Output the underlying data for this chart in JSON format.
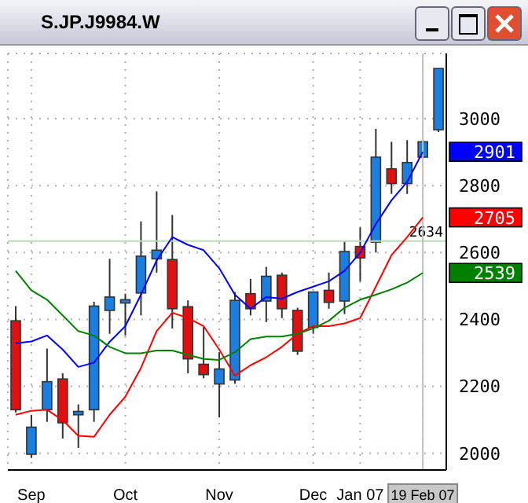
{
  "chart_data": {
    "type": "candlestick",
    "title": "S.JP.J9984.W",
    "categories": [
      null,
      "Sep",
      null,
      null,
      null,
      null,
      null,
      "Oct",
      null,
      null,
      null,
      null,
      null,
      "Nov",
      null,
      null,
      null,
      null,
      null,
      "Dec",
      null,
      null,
      "Jan 07",
      null,
      null,
      null,
      "19 Feb 07",
      null
    ],
    "ohlc": [
      [
        2396,
        2440,
        2122,
        2130
      ],
      [
        1997,
        2115,
        1986,
        2078
      ],
      [
        2130,
        2313,
        2094,
        2214
      ],
      [
        2222,
        2239,
        2044,
        2091
      ],
      [
        2115,
        2146,
        2016,
        2125
      ],
      [
        2130,
        2453,
        2094,
        2440
      ],
      [
        2427,
        2581,
        2357,
        2467
      ],
      [
        2449,
        2477,
        2352,
        2459
      ],
      [
        2479,
        2693,
        2412,
        2589
      ],
      [
        2581,
        2783,
        2540,
        2607
      ],
      [
        2579,
        2712,
        2373,
        2432
      ],
      [
        2438,
        2457,
        2239,
        2282
      ],
      [
        2266,
        2377,
        2224,
        2235
      ],
      [
        2207,
        2302,
        2107,
        2252
      ],
      [
        2219,
        2482,
        2208,
        2457
      ],
      [
        2477,
        2521,
        2412,
        2432
      ],
      [
        2455,
        2557,
        2392,
        2529
      ],
      [
        2532,
        2540,
        2404,
        2432
      ],
      [
        2427,
        2435,
        2294,
        2305
      ],
      [
        2376,
        2482,
        2357,
        2482
      ],
      [
        2487,
        2540,
        2432,
        2451
      ],
      [
        2455,
        2634,
        2416,
        2603
      ],
      [
        2618,
        2675,
        2514,
        2584
      ],
      [
        2631,
        2970,
        2600,
        2885
      ],
      [
        2850,
        2931,
        2775,
        2806
      ],
      [
        2806,
        2936,
        2775,
        2869
      ],
      [
        2885,
        2936,
        2881,
        2931
      ],
      [
        2967,
        3150,
        2960,
        3150
      ]
    ],
    "colors": [
      "#e01010",
      "#1a7fe0",
      "#1a7fe0",
      "#e01010",
      "#1a7fe0",
      "#1a7fe0",
      "#1a7fe0",
      "#1a7fe0",
      "#1a7fe0",
      "#1a7fe0",
      "#e01010",
      "#e01010",
      "#e01010",
      "#1a7fe0",
      "#1a7fe0",
      "#e01010",
      "#1a7fe0",
      "#e01010",
      "#e01010",
      "#1a7fe0",
      "#e01010",
      "#1a7fe0",
      "#e01010",
      "#1a7fe0",
      "#e01010",
      "#1a7fe0",
      "#1a7fe0",
      "#1a7fe0"
    ],
    "series": [
      {
        "type": "line",
        "color": "#0000ff",
        "values": [
          2329,
          2334,
          2352,
          2310,
          2258,
          2271,
          2333,
          2380,
          2474,
          2576,
          2646,
          2623,
          2607,
          2553,
          2474,
          2432,
          2467,
          2462,
          2482,
          2498,
          2514,
          2545,
          2599,
          2685,
          2756,
          2811,
          2901,
          null
        ]
      },
      {
        "type": "line",
        "color": "#ff0000",
        "values": [
          2115,
          2127,
          2130,
          2099,
          2052,
          2049,
          2115,
          2169,
          2255,
          2365,
          2420,
          2404,
          2380,
          2310,
          2232,
          2263,
          2287,
          2318,
          2357,
          2380,
          2380,
          2388,
          2404,
          2498,
          2592,
          2646,
          2705,
          null
        ]
      },
      {
        "type": "line",
        "color": "#008000",
        "values": [
          2545,
          2487,
          2459,
          2412,
          2365,
          2352,
          2318,
          2299,
          2299,
          2307,
          2307,
          2294,
          2282,
          2279,
          2302,
          2341,
          2349,
          2349,
          2357,
          2373,
          2396,
          2435,
          2459,
          2474,
          2490,
          2510,
          2539,
          null
        ]
      }
    ],
    "annotations": [
      "2901",
      "2705",
      "2539"
    ],
    "ylim": [
      1950,
      3195
    ],
    "yticks": [
      2000,
      2200,
      2400,
      2600,
      2800,
      3000
    ],
    "grid": true,
    "ref_lines": [
      {
        "axis": "y",
        "value": 2634,
        "label": "2634",
        "color": "#b8dcb8"
      },
      {
        "axis": "x",
        "value": "19 Feb 07",
        "color": "#c0c0c0"
      }
    ]
  }
}
